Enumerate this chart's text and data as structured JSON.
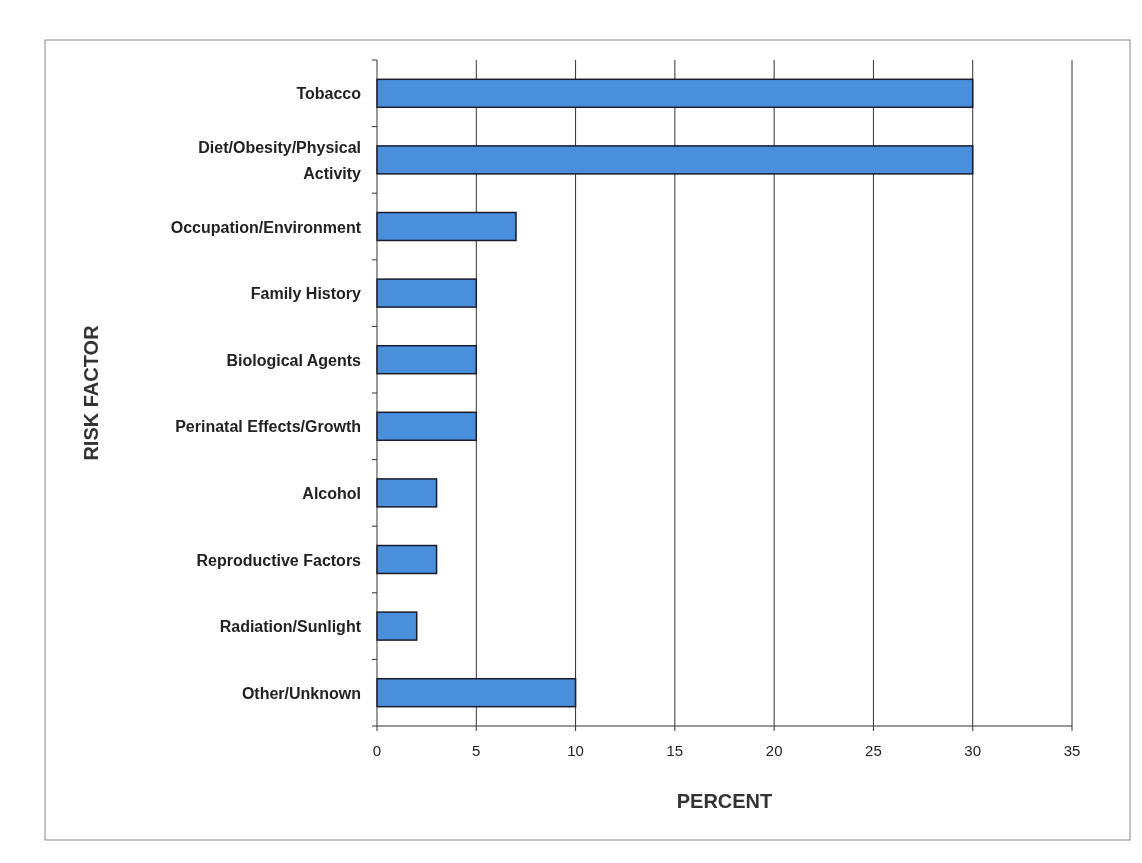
{
  "chart_data": {
    "type": "bar",
    "orientation": "horizontal",
    "xlabel": "PERCENT",
    "ylabel": "RISK FACTOR",
    "categories": [
      "Tobacco",
      "Diet/Obesity/Physical Activity",
      "Occupation/Environment",
      "Family History",
      "Biological Agents",
      "Perinatal Effects/Growth",
      "Alcohol",
      "Reproductive Factors",
      "Radiation/Sunlight",
      "Other/Unknown"
    ],
    "values": [
      30,
      30,
      7,
      5,
      5,
      5,
      3,
      3,
      2,
      10
    ],
    "color": "#4a8fdb",
    "xlim": [
      0,
      35
    ],
    "xticks": [
      0,
      5,
      10,
      15,
      20,
      25,
      30,
      35
    ],
    "grid": "x"
  }
}
